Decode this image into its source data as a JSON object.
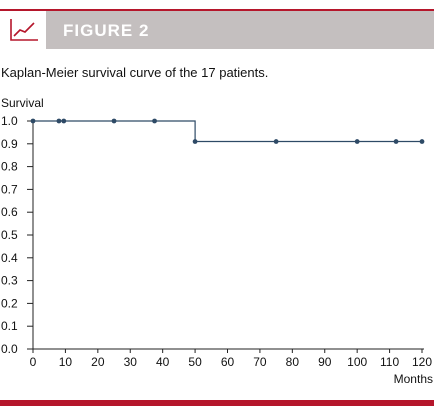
{
  "header": {
    "figure_label": "FIGURE 2",
    "icon": "line-chart-icon",
    "accent_color": "#b5162b",
    "band_color": "#c4bfbf"
  },
  "caption": "Kaplan-Meier survival curve of the 17 patients.",
  "chart_data": {
    "type": "line",
    "style": "step",
    "ylabel": "Survival",
    "xlabel": "Months",
    "xlim": [
      0,
      120
    ],
    "ylim": [
      0,
      1.0
    ],
    "x_ticks": [
      0,
      10,
      20,
      30,
      40,
      50,
      60,
      70,
      80,
      90,
      100,
      110,
      120
    ],
    "y_ticks": [
      "0.0",
      "0.1",
      "0.2",
      "0.3",
      "0.4",
      "0.5",
      "0.6",
      "0.7",
      "0.8",
      "0.9",
      "1.0"
    ],
    "line_color": "#2e4a66",
    "grid": false,
    "step_points": [
      [
        0,
        1.0
      ],
      [
        50,
        1.0
      ],
      [
        50,
        0.91
      ],
      [
        120,
        0.91
      ]
    ],
    "censored_marks": [
      {
        "x": 0,
        "y": 1.0
      },
      {
        "x": 8,
        "y": 1.0
      },
      {
        "x": 9.5,
        "y": 1.0
      },
      {
        "x": 25,
        "y": 1.0
      },
      {
        "x": 37.5,
        "y": 1.0
      },
      {
        "x": 50,
        "y": 0.91
      },
      {
        "x": 75,
        "y": 0.91
      },
      {
        "x": 100,
        "y": 0.91
      },
      {
        "x": 112,
        "y": 0.91
      },
      {
        "x": 126,
        "y": 0.91
      }
    ]
  }
}
